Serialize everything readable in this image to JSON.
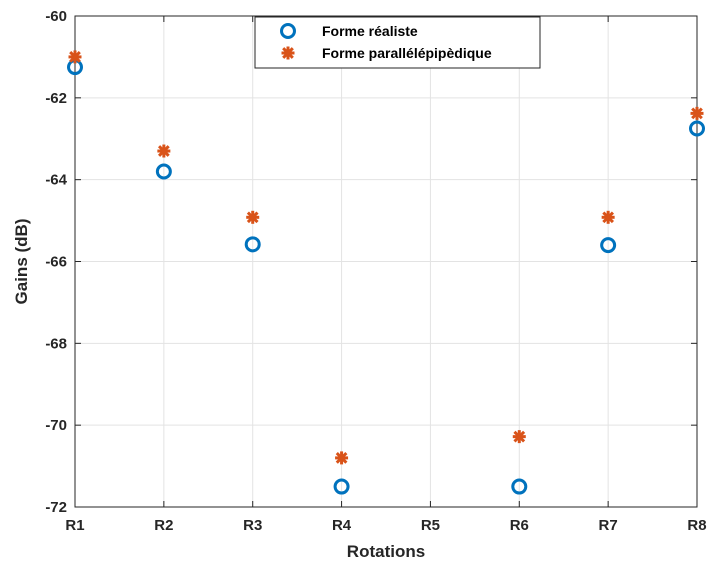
{
  "chart_data": {
    "type": "scatter",
    "categories": [
      "R1",
      "R2",
      "R3",
      "R4",
      "R5",
      "R6",
      "R7",
      "R8"
    ],
    "series": [
      {
        "name": "Forme réaliste",
        "marker": "circle",
        "color": "#0072BD",
        "values": [
          -61.25,
          -63.8,
          -65.58,
          -71.5,
          null,
          -71.5,
          -65.6,
          -62.75
        ]
      },
      {
        "name": "Forme parallélépipèdique",
        "marker": "asterisk",
        "color": "#D95319",
        "values": [
          -61.0,
          -63.3,
          -64.92,
          -70.8,
          null,
          -70.28,
          -64.92,
          -62.38
        ]
      }
    ],
    "xlabel": "Rotations",
    "ylabel": "Gains (dB)",
    "ylim": [
      -72,
      -60
    ],
    "yticks": [
      "-60",
      "-62",
      "-64",
      "-66",
      "-68",
      "-70",
      "-72"
    ],
    "grid": true,
    "legend_position": "top-center"
  }
}
